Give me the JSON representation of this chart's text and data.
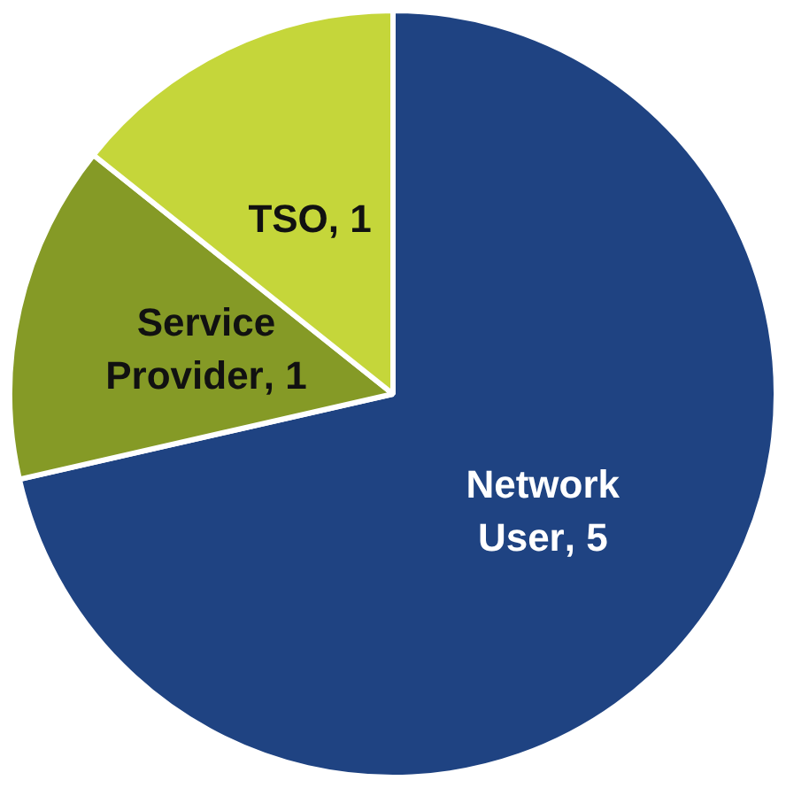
{
  "chart_data": {
    "type": "pie",
    "categories": [
      "Network User",
      "Service Provider",
      "TSO"
    ],
    "values": [
      5,
      1,
      1
    ],
    "colors": [
      "#1f4382",
      "#859a26",
      "#c5d63a"
    ],
    "value_labels": [
      ", 5",
      ", 1",
      ", 1"
    ],
    "legend": false
  }
}
